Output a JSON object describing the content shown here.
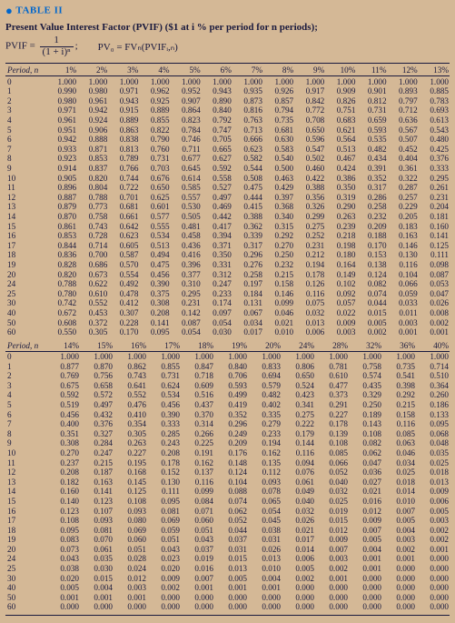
{
  "header": {
    "tableLabel": "TABLE II",
    "title": "Present Value Interest Factor (PVIF) ($1 at i % per period for n periods);",
    "pvifEq": "PVIF =",
    "frac": {
      "num": "1",
      "den": "(1 + i)ⁿ"
    },
    "semi": ";",
    "pvEq": "PV₀ = FVₙ(PVIFᵢ,ₙ)"
  },
  "colors": {
    "background": "#d4b896",
    "text": "#1a1a3e",
    "accent": "#0066cc",
    "rule": "#1a1a3e"
  },
  "typography": {
    "family": "Georgia, serif",
    "cell_fontsize": 9.2,
    "title_fontsize": 11
  },
  "blockA": {
    "periodLabel": "Period, n",
    "cols": [
      "1%",
      "2%",
      "3%",
      "4%",
      "5%",
      "6%",
      "7%",
      "8%",
      "9%",
      "10%",
      "11%",
      "12%",
      "13%"
    ],
    "rows": [
      {
        "p": "0",
        "v": [
          "1.000",
          "1.000",
          "1.000",
          "1.000",
          "1.000",
          "1.000",
          "1.000",
          "1.000",
          "1.000",
          "1.000",
          "1.000",
          "1.000",
          "1.000"
        ]
      },
      {
        "p": "1",
        "v": [
          "0.990",
          "0.980",
          "0.971",
          "0.962",
          "0.952",
          "0.943",
          "0.935",
          "0.926",
          "0.917",
          "0.909",
          "0.901",
          "0.893",
          "0.885"
        ]
      },
      {
        "p": "2",
        "v": [
          "0.980",
          "0.961",
          "0.943",
          "0.925",
          "0.907",
          "0.890",
          "0.873",
          "0.857",
          "0.842",
          "0.826",
          "0.812",
          "0.797",
          "0.783"
        ]
      },
      {
        "p": "3",
        "v": [
          "0.971",
          "0.942",
          "0.915",
          "0.889",
          "0.864",
          "0.840",
          "0.816",
          "0.794",
          "0.772",
          "0.751",
          "0.731",
          "0.712",
          "0.693"
        ]
      },
      {
        "p": "4",
        "v": [
          "0.961",
          "0.924",
          "0.889",
          "0.855",
          "0.823",
          "0.792",
          "0.763",
          "0.735",
          "0.708",
          "0.683",
          "0.659",
          "0.636",
          "0.613"
        ]
      },
      {
        "p": "5",
        "v": [
          "0.951",
          "0.906",
          "0.863",
          "0.822",
          "0.784",
          "0.747",
          "0.713",
          "0.681",
          "0.650",
          "0.621",
          "0.593",
          "0.567",
          "0.543"
        ]
      },
      {
        "p": "6",
        "v": [
          "0.942",
          "0.888",
          "0.838",
          "0.790",
          "0.746",
          "0.705",
          "0.666",
          "0.630",
          "0.596",
          "0.564",
          "0.535",
          "0.507",
          "0.480"
        ]
      },
      {
        "p": "7",
        "v": [
          "0.933",
          "0.871",
          "0.813",
          "0.760",
          "0.711",
          "0.665",
          "0.623",
          "0.583",
          "0.547",
          "0.513",
          "0.482",
          "0.452",
          "0.425"
        ]
      },
      {
        "p": "8",
        "v": [
          "0.923",
          "0.853",
          "0.789",
          "0.731",
          "0.677",
          "0.627",
          "0.582",
          "0.540",
          "0.502",
          "0.467",
          "0.434",
          "0.404",
          "0.376"
        ]
      },
      {
        "p": "9",
        "v": [
          "0.914",
          "0.837",
          "0.766",
          "0.703",
          "0.645",
          "0.592",
          "0.544",
          "0.500",
          "0.460",
          "0.424",
          "0.391",
          "0.361",
          "0.333"
        ]
      },
      {
        "p": "10",
        "v": [
          "0.905",
          "0.820",
          "0.744",
          "0.676",
          "0.614",
          "0.558",
          "0.508",
          "0.463",
          "0.422",
          "0.386",
          "0.352",
          "0.322",
          "0.295"
        ]
      },
      {
        "p": "11",
        "v": [
          "0.896",
          "0.804",
          "0.722",
          "0.650",
          "0.585",
          "0.527",
          "0.475",
          "0.429",
          "0.388",
          "0.350",
          "0.317",
          "0.287",
          "0.261"
        ]
      },
      {
        "p": "12",
        "v": [
          "0.887",
          "0.788",
          "0.701",
          "0.625",
          "0.557",
          "0.497",
          "0.444",
          "0.397",
          "0.356",
          "0.319",
          "0.286",
          "0.257",
          "0.231"
        ]
      },
      {
        "p": "13",
        "v": [
          "0.879",
          "0.773",
          "0.681",
          "0.601",
          "0.530",
          "0.469",
          "0.415",
          "0.368",
          "0.326",
          "0.290",
          "0.258",
          "0.229",
          "0.204"
        ]
      },
      {
        "p": "14",
        "v": [
          "0.870",
          "0.758",
          "0.661",
          "0.577",
          "0.505",
          "0.442",
          "0.388",
          "0.340",
          "0.299",
          "0.263",
          "0.232",
          "0.205",
          "0.181"
        ]
      },
      {
        "p": "15",
        "v": [
          "0.861",
          "0.743",
          "0.642",
          "0.555",
          "0.481",
          "0.417",
          "0.362",
          "0.315",
          "0.275",
          "0.239",
          "0.209",
          "0.183",
          "0.160"
        ]
      },
      {
        "p": "16",
        "v": [
          "0.853",
          "0.728",
          "0.623",
          "0.534",
          "0.458",
          "0.394",
          "0.339",
          "0.292",
          "0.252",
          "0.218",
          "0.188",
          "0.163",
          "0.141"
        ]
      },
      {
        "p": "17",
        "v": [
          "0.844",
          "0.714",
          "0.605",
          "0.513",
          "0.436",
          "0.371",
          "0.317",
          "0.270",
          "0.231",
          "0.198",
          "0.170",
          "0.146",
          "0.125"
        ]
      },
      {
        "p": "18",
        "v": [
          "0.836",
          "0.700",
          "0.587",
          "0.494",
          "0.416",
          "0.350",
          "0.296",
          "0.250",
          "0.212",
          "0.180",
          "0.153",
          "0.130",
          "0.111"
        ]
      },
      {
        "p": "19",
        "v": [
          "0.828",
          "0.686",
          "0.570",
          "0.475",
          "0.396",
          "0.331",
          "0.276",
          "0.232",
          "0.194",
          "0.164",
          "0.138",
          "0.116",
          "0.098"
        ]
      },
      {
        "p": "20",
        "v": [
          "0.820",
          "0.673",
          "0.554",
          "0.456",
          "0.377",
          "0.312",
          "0.258",
          "0.215",
          "0.178",
          "0.149",
          "0.124",
          "0.104",
          "0.087"
        ]
      },
      {
        "p": "24",
        "v": [
          "0.788",
          "0.622",
          "0.492",
          "0.390",
          "0.310",
          "0.247",
          "0.197",
          "0.158",
          "0.126",
          "0.102",
          "0.082",
          "0.066",
          "0.053"
        ]
      },
      {
        "p": "25",
        "v": [
          "0.780",
          "0.610",
          "0.478",
          "0.375",
          "0.295",
          "0.233",
          "0.184",
          "0.146",
          "0.116",
          "0.092",
          "0.074",
          "0.059",
          "0.047"
        ]
      },
      {
        "p": "30",
        "v": [
          "0.742",
          "0.552",
          "0.412",
          "0.308",
          "0.231",
          "0.174",
          "0.131",
          "0.099",
          "0.075",
          "0.057",
          "0.044",
          "0.033",
          "0.026"
        ]
      },
      {
        "p": "40",
        "v": [
          "0.672",
          "0.453",
          "0.307",
          "0.208",
          "0.142",
          "0.097",
          "0.067",
          "0.046",
          "0.032",
          "0.022",
          "0.015",
          "0.011",
          "0.008"
        ]
      },
      {
        "p": "50",
        "v": [
          "0.608",
          "0.372",
          "0.228",
          "0.141",
          "0.087",
          "0.054",
          "0.034",
          "0.021",
          "0.013",
          "0.009",
          "0.005",
          "0.003",
          "0.002"
        ]
      },
      {
        "p": "60",
        "v": [
          "0.550",
          "0.305",
          "0.170",
          "0.095",
          "0.054",
          "0.030",
          "0.017",
          "0.010",
          "0.006",
          "0.003",
          "0.002",
          "0.001",
          "0.001"
        ]
      }
    ]
  },
  "blockB": {
    "periodLabel": "Period, n",
    "cols": [
      "14%",
      "15%",
      "16%",
      "17%",
      "18%",
      "19%",
      "20%",
      "24%",
      "28%",
      "32%",
      "36%",
      "40%"
    ],
    "rows": [
      {
        "p": "0",
        "v": [
          "1.000",
          "1.000",
          "1.000",
          "1.000",
          "1.000",
          "1.000",
          "1.000",
          "1.000",
          "1.000",
          "1.000",
          "1.000",
          "1.000"
        ]
      },
      {
        "p": "1",
        "v": [
          "0.877",
          "0.870",
          "0.862",
          "0.855",
          "0.847",
          "0.840",
          "0.833",
          "0.806",
          "0.781",
          "0.758",
          "0.735",
          "0.714"
        ]
      },
      {
        "p": "2",
        "v": [
          "0.769",
          "0.756",
          "0.743",
          "0.731",
          "0.718",
          "0.706",
          "0.694",
          "0.650",
          "0.610",
          "0.574",
          "0.541",
          "0.510"
        ]
      },
      {
        "p": "3",
        "v": [
          "0.675",
          "0.658",
          "0.641",
          "0.624",
          "0.609",
          "0.593",
          "0.579",
          "0.524",
          "0.477",
          "0.435",
          "0.398",
          "0.364"
        ]
      },
      {
        "p": "4",
        "v": [
          "0.592",
          "0.572",
          "0.552",
          "0.534",
          "0.516",
          "0.499",
          "0.482",
          "0.423",
          "0.373",
          "0.329",
          "0.292",
          "0.260"
        ]
      },
      {
        "p": "5",
        "v": [
          "0.519",
          "0.497",
          "0.476",
          "0.456",
          "0.437",
          "0.419",
          "0.402",
          "0.341",
          "0.291",
          "0.250",
          "0.215",
          "0.186"
        ]
      },
      {
        "p": "6",
        "v": [
          "0.456",
          "0.432",
          "0.410",
          "0.390",
          "0.370",
          "0.352",
          "0.335",
          "0.275",
          "0.227",
          "0.189",
          "0.158",
          "0.133"
        ]
      },
      {
        "p": "7",
        "v": [
          "0.400",
          "0.376",
          "0.354",
          "0.333",
          "0.314",
          "0.296",
          "0.279",
          "0.222",
          "0.178",
          "0.143",
          "0.116",
          "0.095"
        ]
      },
      {
        "p": "8",
        "v": [
          "0.351",
          "0.327",
          "0.305",
          "0.285",
          "0.266",
          "0.249",
          "0.233",
          "0.179",
          "0.139",
          "0.108",
          "0.085",
          "0.068"
        ]
      },
      {
        "p": "9",
        "v": [
          "0.308",
          "0.284",
          "0.263",
          "0.243",
          "0.225",
          "0.209",
          "0.194",
          "0.144",
          "0.108",
          "0.082",
          "0.063",
          "0.048"
        ]
      },
      {
        "p": "10",
        "v": [
          "0.270",
          "0.247",
          "0.227",
          "0.208",
          "0.191",
          "0.176",
          "0.162",
          "0.116",
          "0.085",
          "0.062",
          "0.046",
          "0.035"
        ]
      },
      {
        "p": "11",
        "v": [
          "0.237",
          "0.215",
          "0.195",
          "0.178",
          "0.162",
          "0.148",
          "0.135",
          "0.094",
          "0.066",
          "0.047",
          "0.034",
          "0.025"
        ]
      },
      {
        "p": "12",
        "v": [
          "0.208",
          "0.187",
          "0.168",
          "0.152",
          "0.137",
          "0.124",
          "0.112",
          "0.076",
          "0.052",
          "0.036",
          "0.025",
          "0.018"
        ]
      },
      {
        "p": "13",
        "v": [
          "0.182",
          "0.163",
          "0.145",
          "0.130",
          "0.116",
          "0.104",
          "0.093",
          "0.061",
          "0.040",
          "0.027",
          "0.018",
          "0.013"
        ]
      },
      {
        "p": "14",
        "v": [
          "0.160",
          "0.141",
          "0.125",
          "0.111",
          "0.099",
          "0.088",
          "0.078",
          "0.049",
          "0.032",
          "0.021",
          "0.014",
          "0.009"
        ]
      },
      {
        "p": "15",
        "v": [
          "0.140",
          "0.123",
          "0.108",
          "0.095",
          "0.084",
          "0.074",
          "0.065",
          "0.040",
          "0.025",
          "0.016",
          "0.010",
          "0.006"
        ]
      },
      {
        "p": "16",
        "v": [
          "0.123",
          "0.107",
          "0.093",
          "0.081",
          "0.071",
          "0.062",
          "0.054",
          "0.032",
          "0.019",
          "0.012",
          "0.007",
          "0.005"
        ]
      },
      {
        "p": "17",
        "v": [
          "0.108",
          "0.093",
          "0.080",
          "0.069",
          "0.060",
          "0.052",
          "0.045",
          "0.026",
          "0.015",
          "0.009",
          "0.005",
          "0.003"
        ]
      },
      {
        "p": "18",
        "v": [
          "0.095",
          "0.081",
          "0.069",
          "0.059",
          "0.051",
          "0.044",
          "0.038",
          "0.021",
          "0.012",
          "0.007",
          "0.004",
          "0.002"
        ]
      },
      {
        "p": "19",
        "v": [
          "0.083",
          "0.070",
          "0.060",
          "0.051",
          "0.043",
          "0.037",
          "0.031",
          "0.017",
          "0.009",
          "0.005",
          "0.003",
          "0.002"
        ]
      },
      {
        "p": "20",
        "v": [
          "0.073",
          "0.061",
          "0.051",
          "0.043",
          "0.037",
          "0.031",
          "0.026",
          "0.014",
          "0.007",
          "0.004",
          "0.002",
          "0.001"
        ]
      },
      {
        "p": "24",
        "v": [
          "0.043",
          "0.035",
          "0.028",
          "0.023",
          "0.019",
          "0.015",
          "0.013",
          "0.006",
          "0.003",
          "0.001",
          "0.001",
          "0.000"
        ]
      },
      {
        "p": "25",
        "v": [
          "0.038",
          "0.030",
          "0.024",
          "0.020",
          "0.016",
          "0.013",
          "0.010",
          "0.005",
          "0.002",
          "0.001",
          "0.000",
          "0.000"
        ]
      },
      {
        "p": "30",
        "v": [
          "0.020",
          "0.015",
          "0.012",
          "0.009",
          "0.007",
          "0.005",
          "0.004",
          "0.002",
          "0.001",
          "0.000",
          "0.000",
          "0.000"
        ]
      },
      {
        "p": "40",
        "v": [
          "0.005",
          "0.004",
          "0.003",
          "0.002",
          "0.001",
          "0.001",
          "0.001",
          "0.000",
          "0.000",
          "0.000",
          "0.000",
          "0.000"
        ]
      },
      {
        "p": "50",
        "v": [
          "0.001",
          "0.001",
          "0.001",
          "0.000",
          "0.000",
          "0.000",
          "0.000",
          "0.000",
          "0.000",
          "0.000",
          "0.000",
          "0.000"
        ]
      },
      {
        "p": "60",
        "v": [
          "0.000",
          "0.000",
          "0.000",
          "0.000",
          "0.000",
          "0.000",
          "0.000",
          "0.000",
          "0.000",
          "0.000",
          "0.000",
          "0.000"
        ]
      }
    ]
  }
}
